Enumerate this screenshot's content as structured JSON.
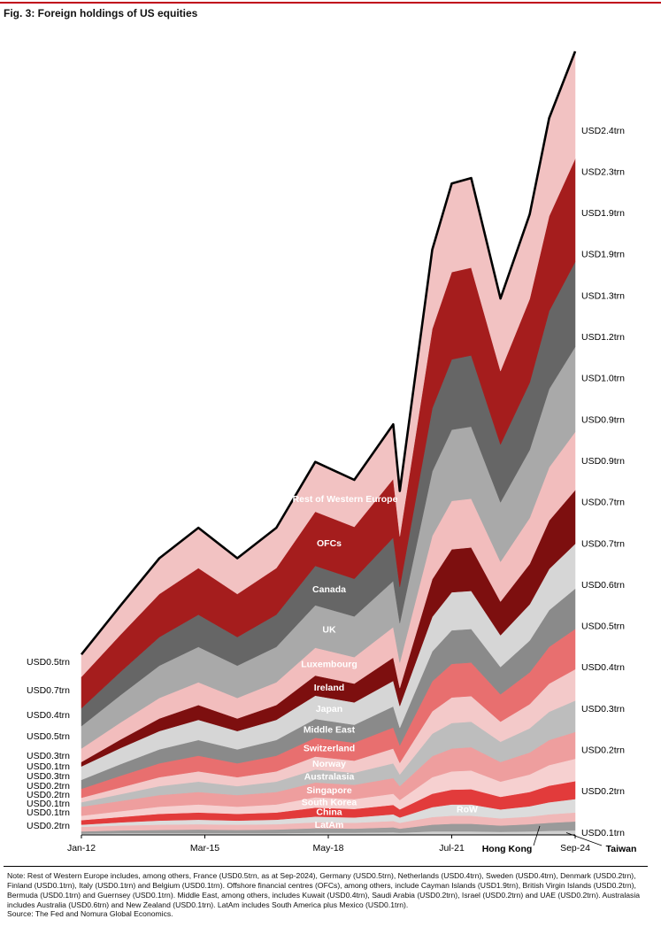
{
  "chart_data": {
    "type": "stacked-area",
    "title": "Fig. 3: Foreign holdings of US equities",
    "x": [
      "Jan-12",
      "Jan-13",
      "Jan-14",
      "Jan-15",
      "Jan-16",
      "Jan-17",
      "Jan-18",
      "Jan-19",
      "Jan-20",
      "Mar-20",
      "Jan-21",
      "Jul-21",
      "Jan-22",
      "Oct-22",
      "Jul-23",
      "Jan-24",
      "Sep-24"
    ],
    "xticks": [
      "Jan-12",
      "Mar-15",
      "May-18",
      "Jul-21",
      "Sep-24"
    ],
    "series": [
      {
        "name": "Taiwan",
        "color": "#d0d0d0",
        "values": [
          0.03,
          0.04,
          0.04,
          0.04,
          0.04,
          0.04,
          0.05,
          0.05,
          0.06,
          0.05,
          0.08,
          0.08,
          0.08,
          0.07,
          0.08,
          0.09,
          0.1
        ]
      },
      {
        "name": "Hong Kong",
        "color": "#9a9a9a",
        "values": [
          0.05,
          0.06,
          0.07,
          0.08,
          0.07,
          0.08,
          0.1,
          0.09,
          0.11,
          0.09,
          0.15,
          0.17,
          0.17,
          0.14,
          0.16,
          0.18,
          0.2
        ]
      },
      {
        "name": "LatAm",
        "color": "#f0b8b8",
        "values": [
          0.1,
          0.11,
          0.12,
          0.12,
          0.12,
          0.12,
          0.13,
          0.13,
          0.14,
          0.13,
          0.17,
          0.18,
          0.18,
          0.16,
          0.17,
          0.19,
          0.2
        ]
      },
      {
        "name": "RoW",
        "color": "#dcdcdc",
        "values": [
          0.05,
          0.07,
          0.09,
          0.1,
          0.09,
          0.1,
          0.13,
          0.12,
          0.15,
          0.12,
          0.22,
          0.25,
          0.25,
          0.2,
          0.23,
          0.27,
          0.3
        ]
      },
      {
        "name": "China",
        "color": "#e23b3b",
        "values": [
          0.1,
          0.12,
          0.15,
          0.16,
          0.15,
          0.16,
          0.2,
          0.19,
          0.21,
          0.18,
          0.3,
          0.33,
          0.34,
          0.28,
          0.32,
          0.37,
          0.4
        ]
      },
      {
        "name": "South Korea",
        "color": "#f6d0d0",
        "values": [
          0.1,
          0.13,
          0.16,
          0.18,
          0.16,
          0.18,
          0.23,
          0.22,
          0.25,
          0.21,
          0.37,
          0.41,
          0.42,
          0.34,
          0.39,
          0.46,
          0.5
        ]
      },
      {
        "name": "Singapore",
        "color": "#ee9e9e",
        "values": [
          0.2,
          0.23,
          0.26,
          0.28,
          0.26,
          0.28,
          0.33,
          0.32,
          0.35,
          0.31,
          0.47,
          0.51,
          0.52,
          0.44,
          0.49,
          0.56,
          0.6
        ]
      },
      {
        "name": "Australasia",
        "color": "#bdbdbd",
        "values": [
          0.1,
          0.15,
          0.2,
          0.23,
          0.2,
          0.23,
          0.29,
          0.27,
          0.33,
          0.26,
          0.5,
          0.57,
          0.57,
          0.45,
          0.54,
          0.63,
          0.7
        ]
      },
      {
        "name": "Norway",
        "color": "#f3c9c9",
        "values": [
          0.1,
          0.15,
          0.2,
          0.23,
          0.2,
          0.23,
          0.29,
          0.27,
          0.33,
          0.26,
          0.5,
          0.57,
          0.57,
          0.45,
          0.54,
          0.63,
          0.7
        ]
      },
      {
        "name": "Switzerland",
        "color": "#e86f6f",
        "values": [
          0.2,
          0.26,
          0.31,
          0.35,
          0.31,
          0.35,
          0.42,
          0.4,
          0.47,
          0.39,
          0.67,
          0.75,
          0.75,
          0.61,
          0.71,
          0.82,
          0.9
        ]
      },
      {
        "name": "Middle East",
        "color": "#8a8a8a",
        "values": [
          0.2,
          0.26,
          0.31,
          0.35,
          0.31,
          0.35,
          0.42,
          0.4,
          0.47,
          0.39,
          0.67,
          0.75,
          0.75,
          0.61,
          0.71,
          0.82,
          0.9
        ]
      },
      {
        "name": "Japan",
        "color": "#d6d6d6",
        "values": [
          0.3,
          0.36,
          0.41,
          0.45,
          0.41,
          0.45,
          0.52,
          0.5,
          0.57,
          0.49,
          0.77,
          0.85,
          0.85,
          0.71,
          0.81,
          0.92,
          1.0
        ]
      },
      {
        "name": "Ireland",
        "color": "#7d0f0f",
        "values": [
          0.1,
          0.19,
          0.28,
          0.33,
          0.28,
          0.33,
          0.45,
          0.42,
          0.52,
          0.4,
          0.84,
          0.96,
          0.97,
          0.75,
          0.9,
          1.08,
          1.2
        ]
      },
      {
        "name": "Luxembourg",
        "color": "#f2bdbd",
        "values": [
          0.3,
          0.38,
          0.46,
          0.51,
          0.46,
          0.51,
          0.62,
          0.59,
          0.68,
          0.57,
          0.97,
          1.08,
          1.09,
          0.89,
          1.03,
          1.19,
          1.3
        ]
      },
      {
        "name": "UK",
        "color": "#a9a9a9",
        "values": [
          0.5,
          0.61,
          0.72,
          0.79,
          0.72,
          0.79,
          0.95,
          0.91,
          1.03,
          0.88,
          1.44,
          1.59,
          1.61,
          1.33,
          1.52,
          1.75,
          1.9
        ]
      },
      {
        "name": "Canada",
        "color": "#666666",
        "values": [
          0.4,
          0.52,
          0.64,
          0.72,
          0.64,
          0.72,
          0.88,
          0.84,
          0.97,
          0.81,
          1.41,
          1.57,
          1.59,
          1.29,
          1.5,
          1.74,
          1.9
        ]
      },
      {
        "name": "OFCs",
        "color": "#a51d1d",
        "values": [
          0.7,
          0.83,
          0.96,
          1.04,
          0.96,
          1.04,
          1.21,
          1.16,
          1.31,
          1.13,
          1.77,
          1.95,
          1.96,
          1.64,
          1.87,
          2.12,
          2.3
        ]
      },
      {
        "name": "Rest of Western Europe",
        "color": "#f2c2c2",
        "values": [
          0.5,
          0.65,
          0.8,
          0.9,
          0.8,
          0.9,
          1.11,
          1.05,
          1.22,
          1.01,
          1.77,
          1.98,
          2.0,
          1.62,
          1.89,
          2.19,
          2.4
        ]
      }
    ],
    "left_labels": [
      "USD0.5trn",
      "USD0.7trn",
      "USD0.4trn",
      "USD0.5trn",
      "USD0.3trn",
      "USD0.1trn",
      "USD0.3trn",
      "USD0.2trn",
      "USD0.2trn",
      "USD0.1trn",
      "USD0.1trn",
      "USD0.2trn"
    ],
    "right_labels": [
      "USD2.4trn",
      "USD2.3trn",
      "USD1.9trn",
      "USD1.9trn",
      "USD1.3trn",
      "USD1.2trn",
      "USD1.0trn",
      "USD0.9trn",
      "USD0.9trn",
      "USD0.7trn",
      "USD0.7trn",
      "USD0.6trn",
      "USD0.5trn",
      "USD0.4trn",
      "USD0.3trn",
      "USD0.2trn",
      "USD0.2trn",
      "USD0.1trn"
    ],
    "note": "Note: Rest of Western Europe includes, among others, France (USD0.5trn, as at Sep-2024), Germany (USD0.5trn), Netherlands (USD0.4trn), Sweden (USD0.4trn), Denmark (USD0.2trn), Finland (USD0.1trn), Italy (USD0.1trn) and Belgium (USD0.1trn). Offshore financial centres (OFCs), among others, include Cayman Islands (USD1.9trn), British Virgin Islands (USD0.2trn), Bermuda (USD0.1trn) and Guernsey (USD0.1trn). Middle East, among others, includes Kuwait (USD0.4trn), Saudi Arabia (USD0.2trn), Israel (USD0.2trn) and UAE (USD0.2trn). Australasia includes Australia (USD0.6trn) and New Zealand (USD0.1trn). LatAm includes South America plus Mexico (USD0.1trn).",
    "source": "Source: The Fed and Nomura Global Economics."
  }
}
